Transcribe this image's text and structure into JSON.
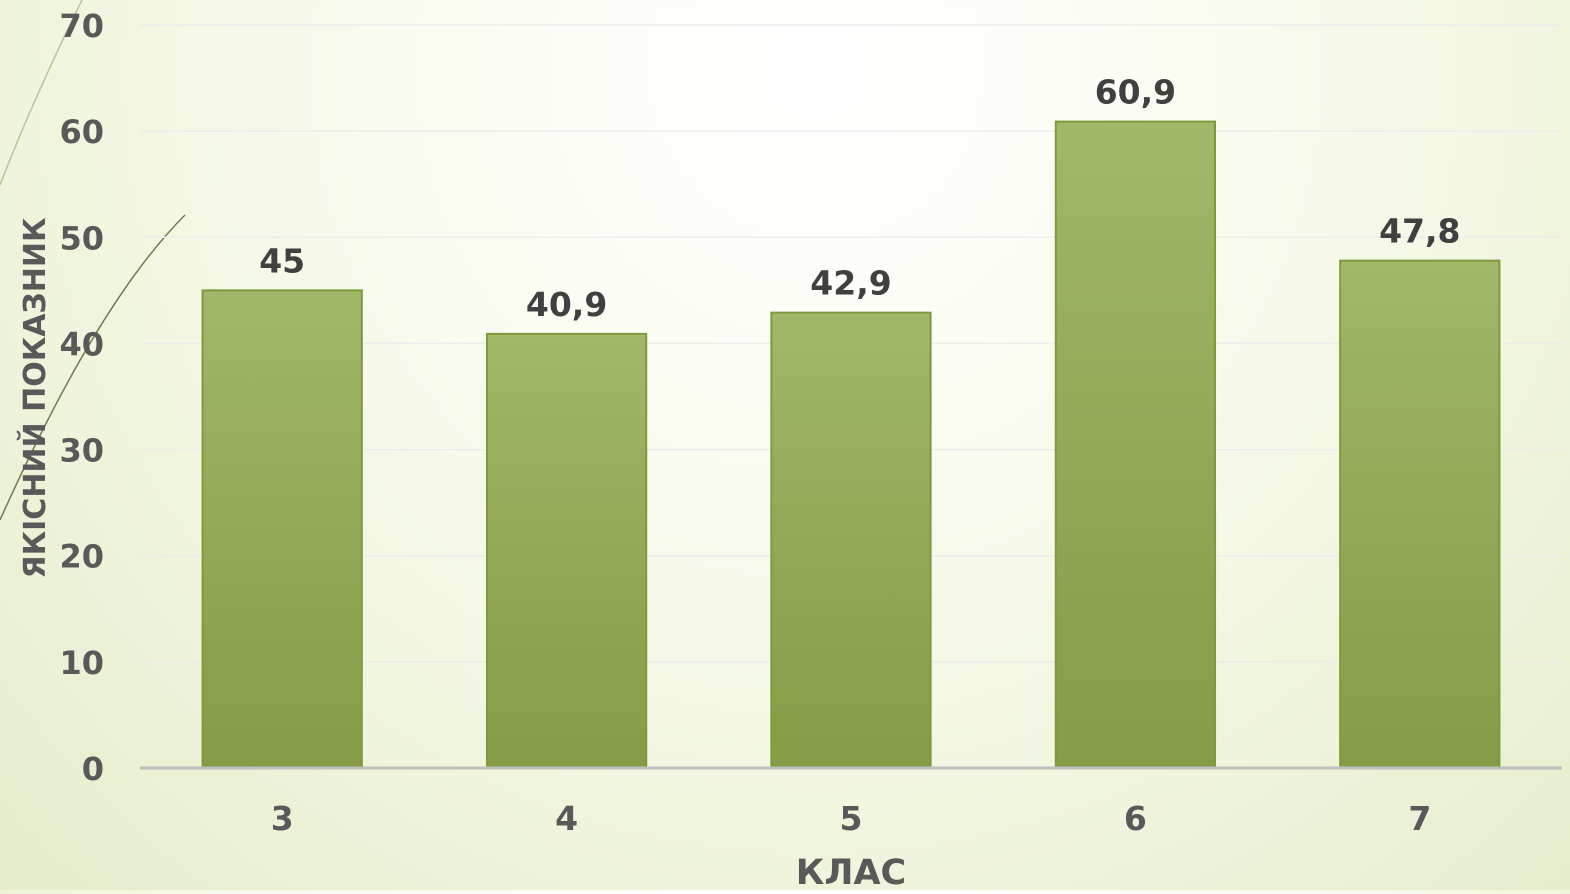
{
  "chart_data": {
    "type": "bar",
    "categories": [
      "3",
      "4",
      "5",
      "6",
      "7"
    ],
    "values": [
      45,
      40.9,
      42.9,
      60.9,
      47.8
    ],
    "value_labels": [
      "45",
      "40,9",
      "42,9",
      "60,9",
      "47,8"
    ],
    "xlabel": "КЛАС",
    "ylabel": "ЯКІСНИЙ ПОКАЗНИК",
    "ylim": [
      0,
      70
    ],
    "yticks": [
      0,
      10,
      20,
      30,
      40,
      50,
      60,
      70
    ],
    "grid": true,
    "legend": "none"
  },
  "colors": {
    "bar_top": "#a1b76a",
    "bar_bottom": "#859b45",
    "bar_stroke": "#7e9a3c",
    "text": "#595959",
    "data_label": "#404040",
    "axis_line": "#bfbfbf",
    "gridline": "#ececec"
  }
}
